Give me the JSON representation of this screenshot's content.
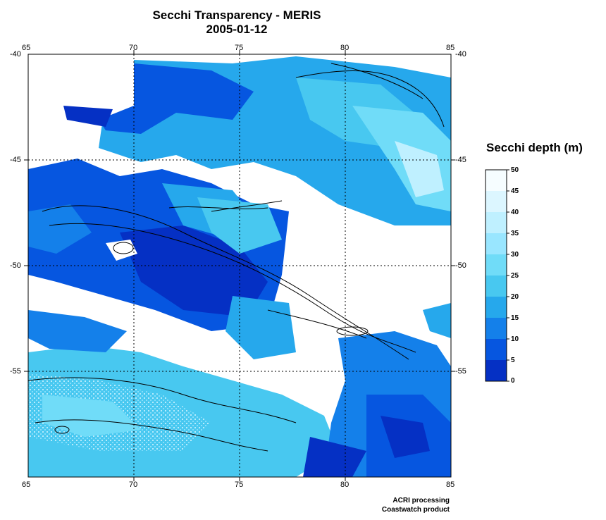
{
  "title": "Secchi Transparency - MERIS",
  "date": "2005-01-12",
  "x_ticks": [
    "65",
    "70",
    "75",
    "80",
    "85"
  ],
  "y_ticks": [
    "-40",
    "-45",
    "-50",
    "-55"
  ],
  "legend": {
    "title": "Secchi depth (m)",
    "labels": [
      "50",
      "45",
      "40",
      "35",
      "30",
      "25",
      "20",
      "15",
      "10",
      "5",
      "0"
    ],
    "colors": [
      "#f6fdff",
      "#dcf6ff",
      "#bff0ff",
      "#99e6ff",
      "#70dcf8",
      "#48c8f0",
      "#26a8ec",
      "#1480ea",
      "#0656e0",
      "#0530c4",
      "#03129c"
    ]
  },
  "credit": [
    "ACRI processing",
    "Coastwatch product"
  ],
  "map": {
    "lon_range": [
      65,
      85
    ],
    "lat_range": [
      -60,
      -40
    ]
  }
}
